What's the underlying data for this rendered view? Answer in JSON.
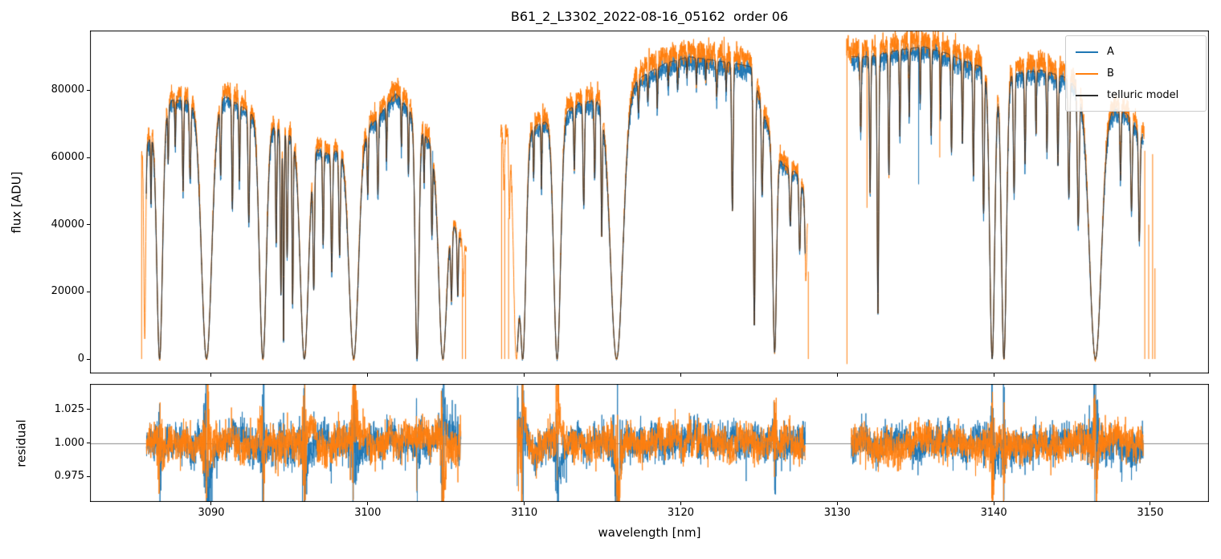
{
  "chart_data": {
    "type": "line",
    "title": "B61_2_L3302_2022-08-16_05162  order 06",
    "xlabel": "wavelength [nm]",
    "xlim": [
      3082.25,
      3153.75
    ],
    "xticks": [
      3090,
      3100,
      3110,
      3120,
      3130,
      3140,
      3150
    ],
    "xtick_labels": [
      "3090",
      "3100",
      "3110",
      "3120",
      "3130",
      "3140",
      "3150"
    ],
    "panels": [
      {
        "name": "flux",
        "ylabel": "flux [ADU]",
        "ylim": [
          -4300,
          97800
        ],
        "yticks": [
          0,
          20000,
          40000,
          60000,
          80000
        ],
        "ytick_labels": [
          "0",
          "20000",
          "40000",
          "60000",
          "80000"
        ],
        "grid": false
      },
      {
        "name": "residual",
        "ylabel": "residual",
        "ylim": [
          0.956,
          1.044
        ],
        "yticks": [
          0.975,
          1.0,
          1.025
        ],
        "ytick_labels": [
          "0.975",
          "1.000",
          "1.025"
        ],
        "reference_line": 1.0,
        "grid": false
      }
    ],
    "legend": {
      "position": "upper right",
      "entries": [
        {
          "label": "A",
          "color": "#1f77b4"
        },
        {
          "label": "B",
          "color": "#ff7f0e"
        },
        {
          "label": "telluric model",
          "color": "#2e2e2e"
        }
      ]
    },
    "series": [
      {
        "name": "A",
        "color": "#1f77b4",
        "scale": 0.985,
        "noise_base": 300,
        "noise_frac": 0.013,
        "chunks": [
          [
            3085.85,
            3105.95
          ],
          [
            3109.55,
            3127.95
          ],
          [
            3130.9,
            3149.55
          ]
        ],
        "spikes": [
          [
            3104.15,
            40000,
            62000
          ],
          [
            3135.2,
            52000,
            91000
          ]
        ]
      },
      {
        "name": "B",
        "color": "#ff7f0e",
        "scale": 1.025,
        "noise_base": 300,
        "noise_frac": 0.015,
        "chunks": [
          [
            3085.55,
            3106.3
          ],
          [
            3108.5,
            3128.1
          ],
          [
            3130.6,
            3149.6
          ]
        ],
        "spikes": [
          [
            3085.55,
            0,
            61000
          ],
          [
            3106.05,
            0,
            27000
          ],
          [
            3106.25,
            0,
            31000
          ],
          [
            3108.55,
            0,
            64500
          ],
          [
            3108.75,
            0,
            55000
          ],
          [
            3109.0,
            0,
            42000
          ],
          [
            3128.15,
            0,
            26000
          ],
          [
            3130.62,
            -1500,
            95500
          ],
          [
            3131.9,
            45000,
            92000
          ],
          [
            3136.55,
            60000,
            93000
          ],
          [
            3149.65,
            0,
            62000
          ],
          [
            3149.9,
            0,
            40000
          ],
          [
            3150.15,
            0,
            61000
          ],
          [
            3150.3,
            0,
            27000
          ]
        ]
      },
      {
        "name": "telluric model",
        "color": "#2e2e2e",
        "scale": 1.0,
        "noise_base": 0,
        "noise_frac": 0,
        "chunks": [
          [
            3085.85,
            3105.95
          ],
          [
            3109.55,
            3127.95
          ],
          [
            3130.9,
            3149.55
          ]
        ],
        "spikes": []
      }
    ],
    "residual_chunks": [
      [
        3085.85,
        3105.95
      ],
      [
        3109.55,
        3127.95
      ],
      [
        3130.9,
        3149.55
      ]
    ],
    "continuum_anchors": [
      [
        3085.5,
        60000
      ],
      [
        3086.5,
        70000
      ],
      [
        3087.5,
        77000
      ],
      [
        3089.0,
        77000
      ],
      [
        3091.0,
        78000
      ],
      [
        3093.0,
        72000
      ],
      [
        3094.5,
        68000
      ],
      [
        3096.0,
        64000
      ],
      [
        3097.5,
        61000
      ],
      [
        3099.0,
        64000
      ],
      [
        3100.5,
        71000
      ],
      [
        3101.8,
        79000
      ],
      [
        3103.0,
        72000
      ],
      [
        3104.0,
        64000
      ],
      [
        3105.0,
        45000
      ],
      [
        3106.3,
        32000
      ],
      [
        3107.5,
        42000
      ],
      [
        3108.5,
        66000
      ],
      [
        3110.0,
        68000
      ],
      [
        3111.5,
        71000
      ],
      [
        3113.5,
        76000
      ],
      [
        3115.5,
        78000
      ],
      [
        3117.5,
        84000
      ],
      [
        3119.0,
        88000
      ],
      [
        3120.5,
        90000
      ],
      [
        3122.0,
        89000
      ],
      [
        3123.5,
        88000
      ],
      [
        3124.5,
        87000
      ],
      [
        3125.5,
        70000
      ],
      [
        3126.5,
        58000
      ],
      [
        3127.5,
        55000
      ],
      [
        3128.2,
        45000
      ],
      [
        3129.5,
        70000
      ],
      [
        3130.6,
        90000
      ],
      [
        3132.0,
        90000
      ],
      [
        3134.0,
        92000
      ],
      [
        3135.5,
        93000
      ],
      [
        3137.0,
        91000
      ],
      [
        3138.5,
        88000
      ],
      [
        3140.0,
        86000
      ],
      [
        3141.5,
        85000
      ],
      [
        3143.0,
        86000
      ],
      [
        3144.5,
        84000
      ],
      [
        3146.0,
        78000
      ],
      [
        3147.5,
        75000
      ],
      [
        3148.5,
        73000
      ],
      [
        3149.5,
        66000
      ],
      [
        3150.4,
        63000
      ]
    ],
    "absorption_lines": [
      [
        3085.75,
        0.9,
        0.06
      ],
      [
        3086.7,
        1.0,
        0.18
      ],
      [
        3089.7,
        1.0,
        0.33
      ],
      [
        3093.3,
        1.0,
        0.22
      ],
      [
        3095.95,
        1.0,
        0.26
      ],
      [
        3099.1,
        1.0,
        0.3
      ],
      [
        3103.15,
        1.0,
        0.12
      ],
      [
        3104.8,
        1.0,
        0.24
      ],
      [
        3109.5,
        1.0,
        0.18
      ],
      [
        3109.9,
        1.0,
        0.2
      ],
      [
        3112.1,
        1.0,
        0.22
      ],
      [
        3115.9,
        1.0,
        0.4
      ],
      [
        3126.0,
        0.97,
        0.12
      ],
      [
        3139.9,
        1.0,
        0.16
      ],
      [
        3140.65,
        1.0,
        0.16
      ],
      [
        3146.5,
        1.0,
        0.38
      ],
      [
        3086.15,
        0.3,
        0.03
      ],
      [
        3087.25,
        0.22,
        0.03
      ],
      [
        3087.7,
        0.18,
        0.03
      ],
      [
        3088.2,
        0.35,
        0.04
      ],
      [
        3088.65,
        0.3,
        0.05
      ],
      [
        3090.6,
        0.28,
        0.04
      ],
      [
        3091.35,
        0.42,
        0.04
      ],
      [
        3091.8,
        0.3,
        0.035
      ],
      [
        3092.4,
        0.45,
        0.05
      ],
      [
        3094.15,
        0.5,
        0.04
      ],
      [
        3094.45,
        0.72,
        0.04
      ],
      [
        3094.62,
        0.92,
        0.035
      ],
      [
        3094.85,
        0.55,
        0.04
      ],
      [
        3095.2,
        0.75,
        0.04
      ],
      [
        3096.55,
        0.65,
        0.05
      ],
      [
        3097.15,
        0.45,
        0.04
      ],
      [
        3097.7,
        0.58,
        0.05
      ],
      [
        3098.2,
        0.5,
        0.05
      ],
      [
        3100.0,
        0.28,
        0.04
      ],
      [
        3100.65,
        0.32,
        0.04
      ],
      [
        3101.2,
        0.22,
        0.03
      ],
      [
        3102.15,
        0.18,
        0.03
      ],
      [
        3102.6,
        0.26,
        0.03
      ],
      [
        3103.6,
        0.22,
        0.03
      ],
      [
        3104.1,
        0.4,
        0.04
      ],
      [
        3105.35,
        0.55,
        0.05
      ],
      [
        3105.75,
        0.5,
        0.04
      ],
      [
        3106.1,
        0.45,
        0.04
      ],
      [
        3108.7,
        0.25,
        0.04
      ],
      [
        3109.05,
        0.35,
        0.04
      ],
      [
        3110.6,
        0.22,
        0.03
      ],
      [
        3111.1,
        0.28,
        0.03
      ],
      [
        3113.2,
        0.25,
        0.04
      ],
      [
        3113.8,
        0.4,
        0.05
      ],
      [
        3114.5,
        0.3,
        0.04
      ],
      [
        3114.95,
        0.5,
        0.04
      ],
      [
        3117.3,
        0.12,
        0.04
      ],
      [
        3117.9,
        0.1,
        0.03
      ],
      [
        3118.5,
        0.14,
        0.03
      ],
      [
        3119.2,
        0.08,
        0.03
      ],
      [
        3119.8,
        0.1,
        0.03
      ],
      [
        3120.4,
        0.07,
        0.025
      ],
      [
        3121.0,
        0.09,
        0.03
      ],
      [
        3121.6,
        0.07,
        0.025
      ],
      [
        3122.3,
        0.12,
        0.04
      ],
      [
        3122.9,
        0.1,
        0.03
      ],
      [
        3123.3,
        0.5,
        0.05
      ],
      [
        3124.7,
        0.88,
        0.06
      ],
      [
        3125.2,
        0.35,
        0.05
      ],
      [
        3127.0,
        0.3,
        0.05
      ],
      [
        3127.6,
        0.4,
        0.05
      ],
      [
        3128.0,
        0.5,
        0.06
      ],
      [
        3131.5,
        0.25,
        0.04
      ],
      [
        3132.1,
        0.45,
        0.04
      ],
      [
        3132.6,
        0.85,
        0.05
      ],
      [
        3133.3,
        0.4,
        0.04
      ],
      [
        3134.0,
        0.28,
        0.035
      ],
      [
        3134.6,
        0.22,
        0.03
      ],
      [
        3135.3,
        0.18,
        0.03
      ],
      [
        3136.0,
        0.28,
        0.035
      ],
      [
        3136.6,
        0.22,
        0.03
      ],
      [
        3137.3,
        0.32,
        0.04
      ],
      [
        3138.0,
        0.28,
        0.035
      ],
      [
        3138.7,
        0.38,
        0.04
      ],
      [
        3139.35,
        0.5,
        0.05
      ],
      [
        3141.3,
        0.42,
        0.05
      ],
      [
        3142.0,
        0.32,
        0.04
      ],
      [
        3142.7,
        0.22,
        0.03
      ],
      [
        3143.4,
        0.28,
        0.035
      ],
      [
        3144.1,
        0.32,
        0.04
      ],
      [
        3144.8,
        0.42,
        0.05
      ],
      [
        3145.4,
        0.5,
        0.06
      ],
      [
        3148.1,
        0.28,
        0.04
      ],
      [
        3148.8,
        0.38,
        0.05
      ],
      [
        3149.3,
        0.48,
        0.05
      ]
    ],
    "sampling_step": 0.01,
    "x_sample_range": [
      3085.5,
      3150.4
    ],
    "noise_seed": 42
  }
}
